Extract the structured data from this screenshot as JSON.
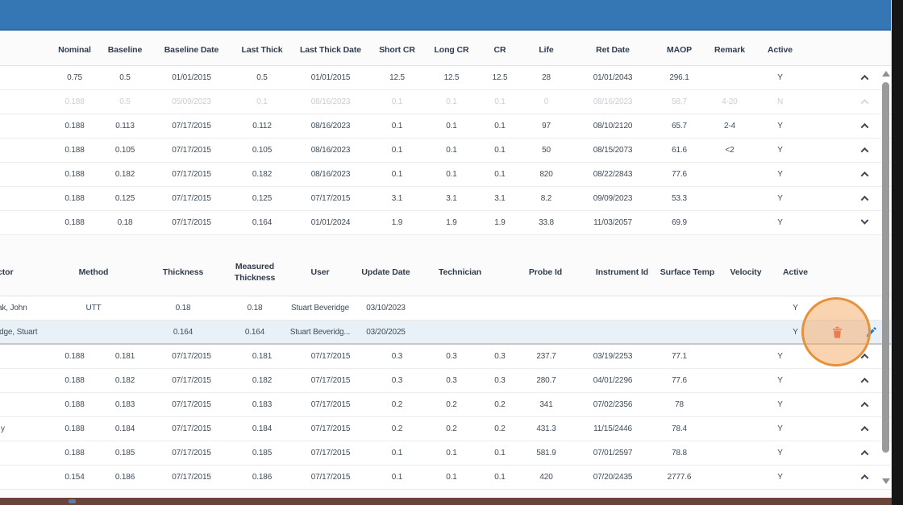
{
  "colors": {
    "topbar_blue": "#3577b5",
    "highlight_circle_border": "#e6913c",
    "trash_red": "#d9503c",
    "pencil_blue": "#2b79bb",
    "highlight_row_bg": "#e9f1f8",
    "inactive_text": "#c8ced5",
    "bottom_bar_brown": "#6a433b"
  },
  "icons": {
    "delete": "trash-icon",
    "edit": "pencil-icon",
    "collapse": "chevron-up-icon",
    "expand": "chevron-down-icon",
    "scroll_up": "triangle-up-icon",
    "scroll_down": "triangle-down-icon"
  },
  "main_table": {
    "columns": [
      {
        "key": "nominal",
        "label": "Nominal"
      },
      {
        "key": "baseline",
        "label": "Baseline"
      },
      {
        "key": "baseline_date",
        "label": "Baseline Date"
      },
      {
        "key": "last_thick",
        "label": "Last Thick"
      },
      {
        "key": "last_thick_date",
        "label": "Last Thick Date"
      },
      {
        "key": "short_cr",
        "label": "Short CR"
      },
      {
        "key": "long_cr",
        "label": "Long CR"
      },
      {
        "key": "cr",
        "label": "CR"
      },
      {
        "key": "life",
        "label": "Life"
      },
      {
        "key": "ret_date",
        "label": "Ret Date"
      },
      {
        "key": "maop",
        "label": "MAOP"
      },
      {
        "key": "remark",
        "label": "Remark"
      },
      {
        "key": "active",
        "label": "Active"
      }
    ],
    "rows_top": [
      {
        "values": [
          "0.75",
          "0.5",
          "01/01/2015",
          "0.5",
          "01/01/2015",
          "12.5",
          "12.5",
          "12.5",
          "28",
          "01/01/2043",
          "296.1",
          "",
          "Y"
        ],
        "state": "normal",
        "chevron": "up",
        "name_fragment": ""
      },
      {
        "values": [
          "0.188",
          "0.5",
          "05/09/2023",
          "0.1",
          "08/16/2023",
          "0.1",
          "0.1",
          "0.1",
          "0",
          "08/16/2023",
          "58.7",
          "4-20",
          "N"
        ],
        "state": "inactive",
        "chevron": "up",
        "name_fragment": ""
      },
      {
        "values": [
          "0.188",
          "0.113",
          "07/17/2015",
          "0.112",
          "08/16/2023",
          "0.1",
          "0.1",
          "0.1",
          "97",
          "08/10/2120",
          "65.7",
          "2-4",
          "Y"
        ],
        "state": "normal",
        "chevron": "up",
        "name_fragment": ""
      },
      {
        "values": [
          "0.188",
          "0.105",
          "07/17/2015",
          "0.105",
          "08/16/2023",
          "0.1",
          "0.1",
          "0.1",
          "50",
          "08/15/2073",
          "61.6",
          "<2",
          "Y"
        ],
        "state": "normal",
        "chevron": "up",
        "name_fragment": ""
      },
      {
        "values": [
          "0.188",
          "0.182",
          "07/17/2015",
          "0.182",
          "08/16/2023",
          "0.1",
          "0.1",
          "0.1",
          "820",
          "08/22/2843",
          "77.6",
          "",
          "Y"
        ],
        "state": "normal",
        "chevron": "up",
        "name_fragment": ""
      },
      {
        "values": [
          "0.188",
          "0.125",
          "07/17/2015",
          "0.125",
          "07/17/2015",
          "3.1",
          "3.1",
          "3.1",
          "8.2",
          "09/09/2023",
          "53.3",
          "",
          "Y"
        ],
        "state": "normal",
        "chevron": "up",
        "name_fragment": ""
      },
      {
        "values": [
          "0.188",
          "0.18",
          "07/17/2015",
          "0.164",
          "01/01/2024",
          "1.9",
          "1.9",
          "1.9",
          "33.8",
          "11/03/2057",
          "69.9",
          "",
          "Y"
        ],
        "state": "normal",
        "chevron": "down",
        "name_fragment": ""
      }
    ],
    "rows_bottom": [
      {
        "values": [
          "0.188",
          "0.181",
          "07/17/2015",
          "0.181",
          "07/17/2015",
          "0.3",
          "0.3",
          "0.3",
          "237.7",
          "03/19/2253",
          "77.1",
          "",
          "Y"
        ],
        "state": "normal",
        "chevron": "up",
        "name_fragment": ""
      },
      {
        "values": [
          "0.188",
          "0.182",
          "07/17/2015",
          "0.182",
          "07/17/2015",
          "0.3",
          "0.3",
          "0.3",
          "280.7",
          "04/01/2296",
          "77.6",
          "",
          "Y"
        ],
        "state": "normal",
        "chevron": "up",
        "name_fragment": ""
      },
      {
        "values": [
          "0.188",
          "0.183",
          "07/17/2015",
          "0.183",
          "07/17/2015",
          "0.2",
          "0.2",
          "0.2",
          "341",
          "07/02/2356",
          "78",
          "",
          "Y"
        ],
        "state": "normal",
        "chevron": "up",
        "name_fragment": ""
      },
      {
        "values": [
          "0.188",
          "0.184",
          "07/17/2015",
          "0.184",
          "07/17/2015",
          "0.2",
          "0.2",
          "0.2",
          "431.3",
          "11/15/2446",
          "78.4",
          "",
          "Y"
        ],
        "state": "normal",
        "chevron": "up",
        "name_fragment": "y"
      },
      {
        "values": [
          "0.188",
          "0.185",
          "07/17/2015",
          "0.185",
          "07/17/2015",
          "0.1",
          "0.1",
          "0.1",
          "581.9",
          "07/01/2597",
          "78.8",
          "",
          "Y"
        ],
        "state": "normal",
        "chevron": "up",
        "name_fragment": ""
      },
      {
        "values": [
          "0.154",
          "0.186",
          "07/17/2015",
          "0.186",
          "07/17/2015",
          "0.1",
          "0.1",
          "0.1",
          "420",
          "07/20/2435",
          "2777.6",
          "",
          "Y"
        ],
        "state": "normal",
        "chevron": "up",
        "name_fragment": ""
      }
    ]
  },
  "sub_table": {
    "columns": [
      {
        "key": "inspector",
        "label": "ctor"
      },
      {
        "key": "method",
        "label": "Method"
      },
      {
        "key": "thickness",
        "label": "Thickness"
      },
      {
        "key": "measured_thickness",
        "label": "Measured Thickness"
      },
      {
        "key": "user",
        "label": "User"
      },
      {
        "key": "update_date",
        "label": "Update Date"
      },
      {
        "key": "technician",
        "label": "Technician"
      },
      {
        "key": "probe_id",
        "label": "Probe Id"
      },
      {
        "key": "instrument_id",
        "label": "Instrument Id"
      },
      {
        "key": "surface_temp",
        "label": "Surface Temp"
      },
      {
        "key": "velocity",
        "label": "Velocity"
      },
      {
        "key": "active",
        "label": "Active"
      }
    ],
    "rows": [
      {
        "inspector": "ak, John",
        "method": "UTT",
        "thickness": "0.18",
        "measured_thickness": "0.18",
        "user": "Stuart Beveridge",
        "update_date": "03/10/2023",
        "technician": "",
        "probe_id": "",
        "instrument_id": "",
        "surface_temp": "",
        "velocity": "",
        "active": "Y",
        "highlighted": false,
        "has_actions": false
      },
      {
        "inspector": "idge, Stuart",
        "method": "",
        "thickness": "0.164",
        "measured_thickness": "0.164",
        "user": "Stuart Beveridg...",
        "update_date": "03/20/2025",
        "technician": "",
        "probe_id": "",
        "instrument_id": "",
        "surface_temp": "",
        "velocity": "",
        "active": "Y",
        "highlighted": true,
        "has_actions": true
      }
    ]
  }
}
